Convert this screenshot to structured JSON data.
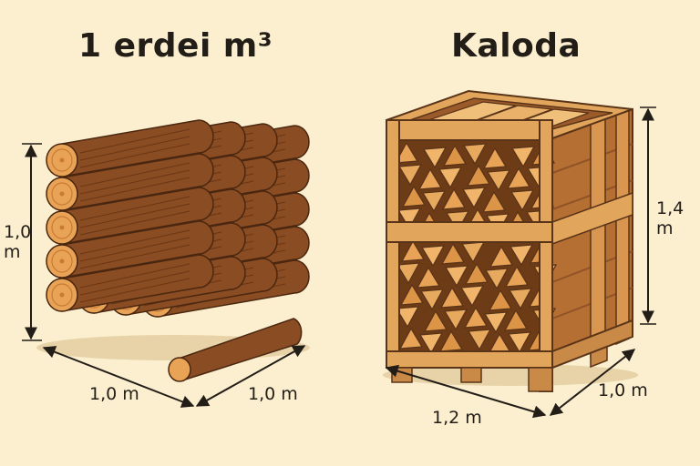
{
  "left": {
    "title": "1 erdei m³",
    "height_label": "1,0 m",
    "depth_label": "1,0 m",
    "width_label": "1,0 m"
  },
  "right": {
    "title": "Kaloda",
    "height_label": "1,4 m",
    "front_label": "1,2 m",
    "depth_label": "1,0 m"
  },
  "colors": {
    "background": "#fbefcf",
    "bark": "#8a4c22",
    "log_end": "#e9a356",
    "crate_wood": "#e2a55c",
    "crate_dark": "#8f5327",
    "ink": "#231d18"
  }
}
